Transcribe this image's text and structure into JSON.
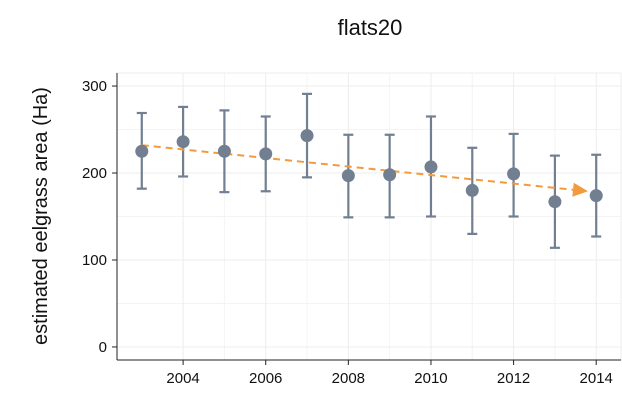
{
  "chart_data": {
    "type": "scatter",
    "title": "flats20",
    "xlabel": "",
    "ylabel": "estimated eelgrass area (Ha)",
    "xlim": [
      2002.4,
      2014.6
    ],
    "ylim": [
      -15,
      315
    ],
    "x_ticks": [
      2004,
      2006,
      2008,
      2010,
      2012,
      2014
    ],
    "y_ticks": [
      0,
      100,
      200,
      300
    ],
    "grid": true,
    "legend": "none",
    "colors": {
      "points": "#717f91",
      "trend": "#f39a3c",
      "grid": "#ececec",
      "axis": "#222222"
    },
    "series": [
      {
        "x": [
          2003,
          2004,
          2005,
          2006,
          2007,
          2008,
          2009,
          2010,
          2011,
          2012,
          2013,
          2014
        ],
        "y": [
          225,
          236,
          225,
          222,
          243,
          197,
          198,
          207,
          180,
          199,
          167,
          174
        ],
        "lower": [
          182,
          196,
          178,
          179,
          195,
          149,
          149,
          150,
          130,
          150,
          114,
          127
        ],
        "upper": [
          269,
          276,
          272,
          265,
          291,
          244,
          244,
          265,
          229,
          245,
          220,
          221
        ]
      }
    ],
    "trend": {
      "x": [
        2003,
        2013.8
      ],
      "y": [
        232,
        179
      ],
      "style": "dashed-arrow"
    }
  }
}
